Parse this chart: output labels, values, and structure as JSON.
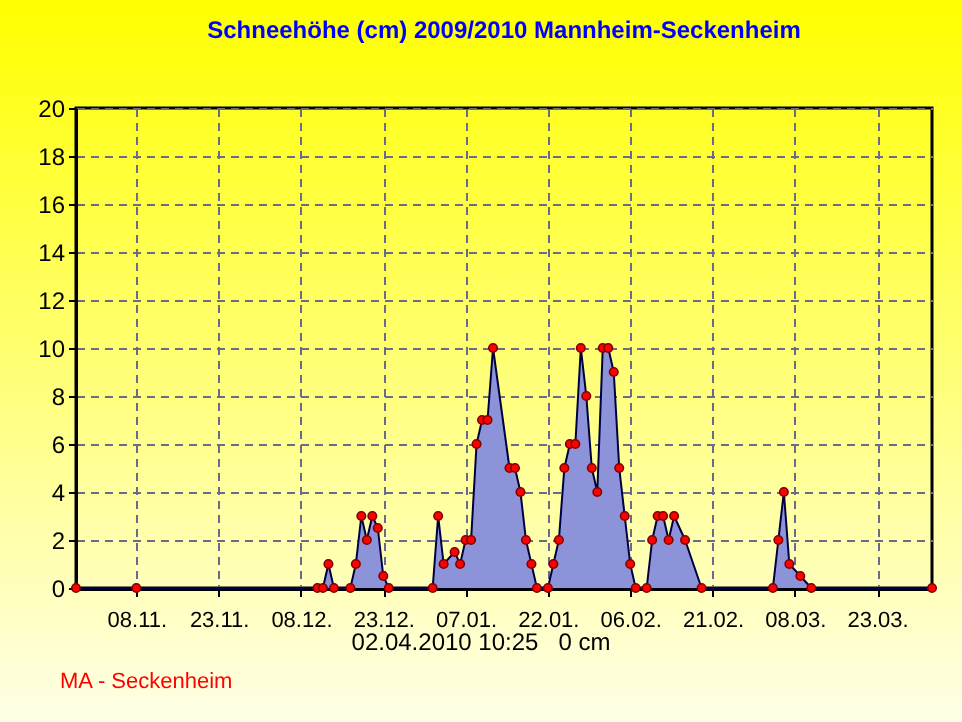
{
  "chart_data": {
    "type": "area",
    "title": "Schneehöhe (cm)  2009/2010      Mannheim-Seckenheim",
    "x": [
      "2009-10-28",
      "2009-11-08",
      "2009-12-11",
      "2009-12-12",
      "2009-12-13",
      "2009-12-14",
      "2009-12-17",
      "2009-12-18",
      "2009-12-19",
      "2009-12-20",
      "2009-12-21",
      "2009-12-22",
      "2009-12-23",
      "2009-12-24",
      "2010-01-01",
      "2010-01-02",
      "2010-01-03",
      "2010-01-05",
      "2010-01-06",
      "2010-01-07",
      "2010-01-08",
      "2010-01-09",
      "2010-01-10",
      "2010-01-11",
      "2010-01-12",
      "2010-01-15",
      "2010-01-16",
      "2010-01-17",
      "2010-01-18",
      "2010-01-19",
      "2010-01-20",
      "2010-01-22",
      "2010-01-23",
      "2010-01-24",
      "2010-01-25",
      "2010-01-26",
      "2010-01-27",
      "2010-01-28",
      "2010-01-29",
      "2010-01-30",
      "2010-01-31",
      "2010-02-01",
      "2010-02-02",
      "2010-02-03",
      "2010-02-04",
      "2010-02-05",
      "2010-02-06",
      "2010-02-07",
      "2010-02-09",
      "2010-02-10",
      "2010-02-11",
      "2010-02-12",
      "2010-02-13",
      "2010-02-14",
      "2010-02-16",
      "2010-02-19",
      "2010-03-04",
      "2010-03-05",
      "2010-03-06",
      "2010-03-07",
      "2010-03-09",
      "2010-03-11",
      "2010-04-02"
    ],
    "series": [
      {
        "color": "#8c93d8",
        "values": [
          0,
          0,
          0,
          0,
          1,
          0,
          0,
          1,
          3,
          2,
          3,
          2.5,
          0.5,
          0,
          0,
          3,
          1,
          1.5,
          1,
          2,
          2,
          6,
          7,
          7,
          10,
          5,
          5,
          4,
          2,
          1,
          0,
          0,
          1,
          2,
          5,
          6,
          6,
          10,
          8,
          5,
          4,
          10,
          10,
          9,
          5,
          3,
          1,
          0,
          0,
          2,
          3,
          3,
          2,
          3,
          2,
          0,
          0,
          2,
          4,
          1,
          0.5,
          0,
          0
        ]
      }
    ],
    "xlim": [
      "2009-10-28",
      "2010-04-02"
    ],
    "xticks": [
      {
        "value": "2009-11-08",
        "label": "08.11."
      },
      {
        "value": "2009-11-23",
        "label": "23.11."
      },
      {
        "value": "2009-12-08",
        "label": "08.12."
      },
      {
        "value": "2009-12-23",
        "label": "23.12."
      },
      {
        "value": "2010-01-07",
        "label": "07.01."
      },
      {
        "value": "2010-01-22",
        "label": "22.01."
      },
      {
        "value": "2010-02-06",
        "label": "06.02."
      },
      {
        "value": "2010-02-21",
        "label": "21.02."
      },
      {
        "value": "2010-03-08",
        "label": "08.03."
      },
      {
        "value": "2010-03-23",
        "label": "23.03."
      }
    ],
    "ylim": [
      0,
      20
    ],
    "yticks": [
      0,
      2,
      4,
      6,
      8,
      10,
      12,
      14,
      16,
      18,
      20
    ],
    "grid": true,
    "marker": "circle",
    "annotations": [
      "02.04.2010 10:25   0 cm",
      "MA - Seckenheim"
    ]
  }
}
